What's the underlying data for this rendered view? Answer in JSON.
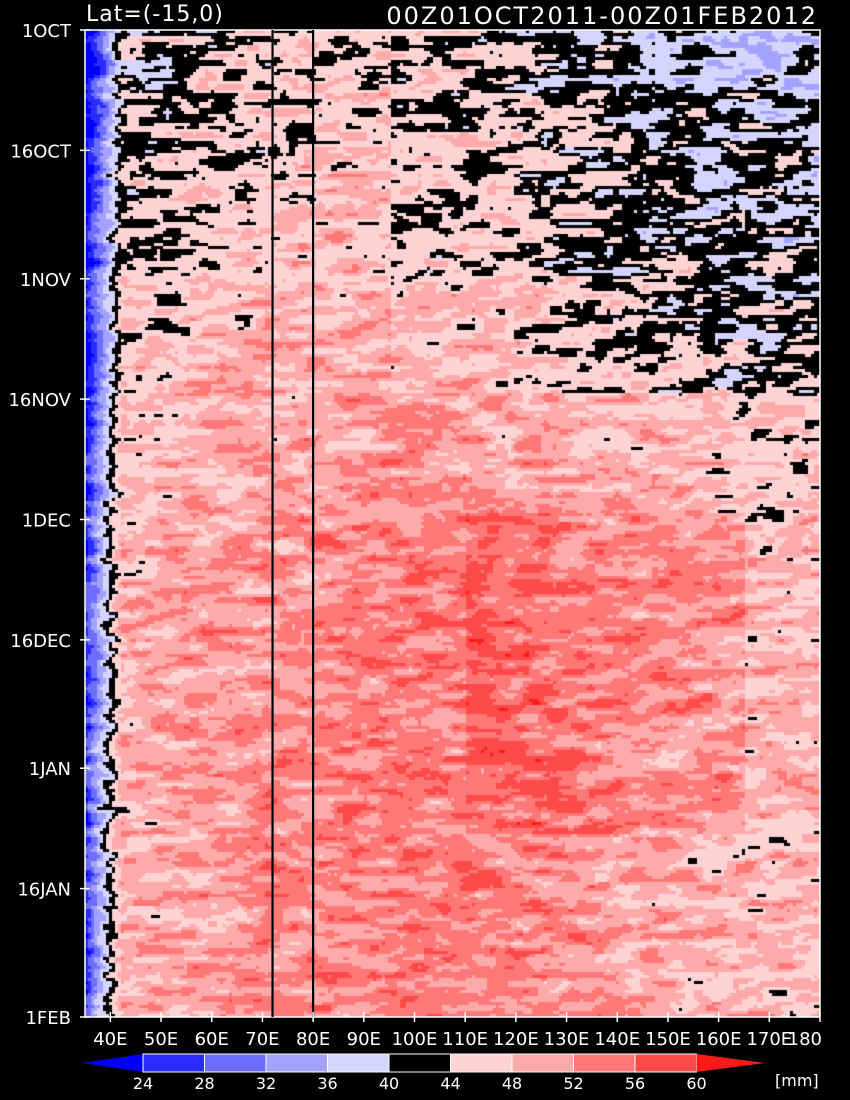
{
  "chart_data": {
    "type": "heatmap",
    "title_left": "Lat=(-15,0)",
    "title_right": "00Z01OCT2011-00Z01FEB2012",
    "units": "[mm]",
    "x_axis": {
      "ticks": [
        "40E",
        "50E",
        "60E",
        "70E",
        "80E",
        "90E",
        "100E",
        "110E",
        "120E",
        "130E",
        "140E",
        "150E",
        "160E",
        "170E",
        "180"
      ],
      "range": [
        "35E",
        "180"
      ]
    },
    "y_axis": {
      "ticks": [
        "1OCT",
        "16OCT",
        "1NOV",
        "16NOV",
        "1DEC",
        "16DEC",
        "1JAN",
        "16JAN",
        "1FEB"
      ],
      "range": [
        "2011-10-01",
        "2012-02-01"
      ],
      "direction": "time increases downward"
    },
    "reference_lines_lon": [
      72,
      80
    ],
    "colorbar": {
      "levels": [
        24,
        28,
        32,
        36,
        40,
        44,
        48,
        52,
        56,
        60
      ],
      "colors": [
        "#0000ff",
        "#2a2cff",
        "#6d6dff",
        "#a3a3ff",
        "#d4d4ff",
        "#000000",
        "#ffd3d3",
        "#ffaaaa",
        "#ff7878",
        "#ff4a4a",
        "#ff1a1a"
      ],
      "extends": "both"
    },
    "description": "Hovmoller of precipitable water: blue values (<40) along western edge near 35-40E; black band (40-44) patches mainly Oct-Nov; reds (48-60) dominating Dec-Jan."
  }
}
